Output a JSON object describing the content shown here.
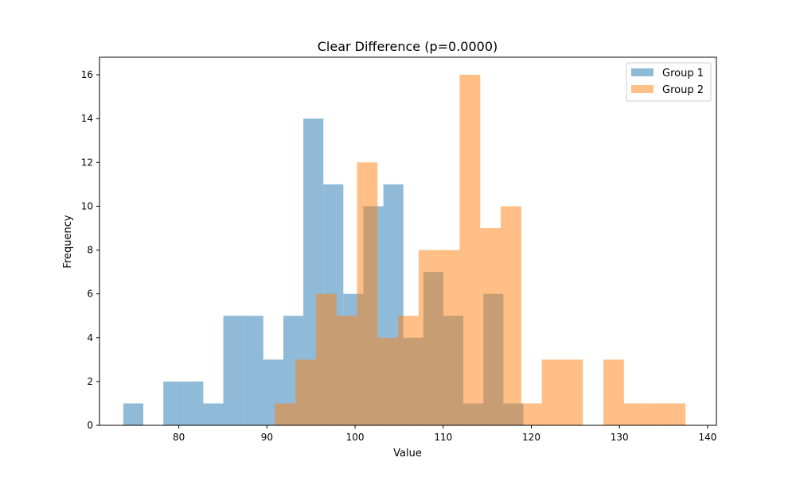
{
  "chart_data": {
    "type": "histogram",
    "title": "Clear Difference (p=0.0000)",
    "xlabel": "Value",
    "ylabel": "Frequency",
    "xlim": [
      71,
      141
    ],
    "ylim": [
      0,
      16.8
    ],
    "xticks": [
      80,
      90,
      100,
      110,
      120,
      130,
      140
    ],
    "yticks": [
      0,
      2,
      4,
      6,
      8,
      10,
      12,
      14,
      16
    ],
    "grid": false,
    "legend_position": "top-right",
    "series": [
      {
        "name": "Group 1",
        "color": "#1f77b4",
        "opacity": 0.5,
        "bin_edges": [
          73.7,
          75.97,
          78.24,
          80.51,
          82.78,
          85.05,
          87.32,
          89.59,
          91.86,
          94.13,
          96.4,
          98.67,
          100.94,
          103.21,
          105.48,
          107.75,
          110.02,
          112.29,
          114.56,
          116.83,
          119.1
        ],
        "counts": [
          1,
          0,
          2,
          2,
          1,
          5,
          5,
          3,
          5,
          14,
          11,
          6,
          10,
          11,
          4,
          7,
          5,
          1,
          6,
          1
        ]
      },
      {
        "name": "Group 2",
        "color": "#ff7f0e",
        "opacity": 0.5,
        "bin_edges": [
          90.9,
          93.23,
          95.56,
          97.89,
          100.22,
          102.55,
          104.88,
          107.21,
          109.54,
          111.87,
          114.2,
          116.53,
          118.86,
          121.19,
          123.52,
          125.85,
          128.18,
          130.51,
          132.84,
          135.17,
          137.5
        ],
        "counts": [
          1,
          3,
          6,
          5,
          12,
          4,
          5,
          8,
          8,
          16,
          9,
          10,
          1,
          3,
          3,
          0,
          3,
          1,
          1,
          1
        ]
      }
    ]
  }
}
